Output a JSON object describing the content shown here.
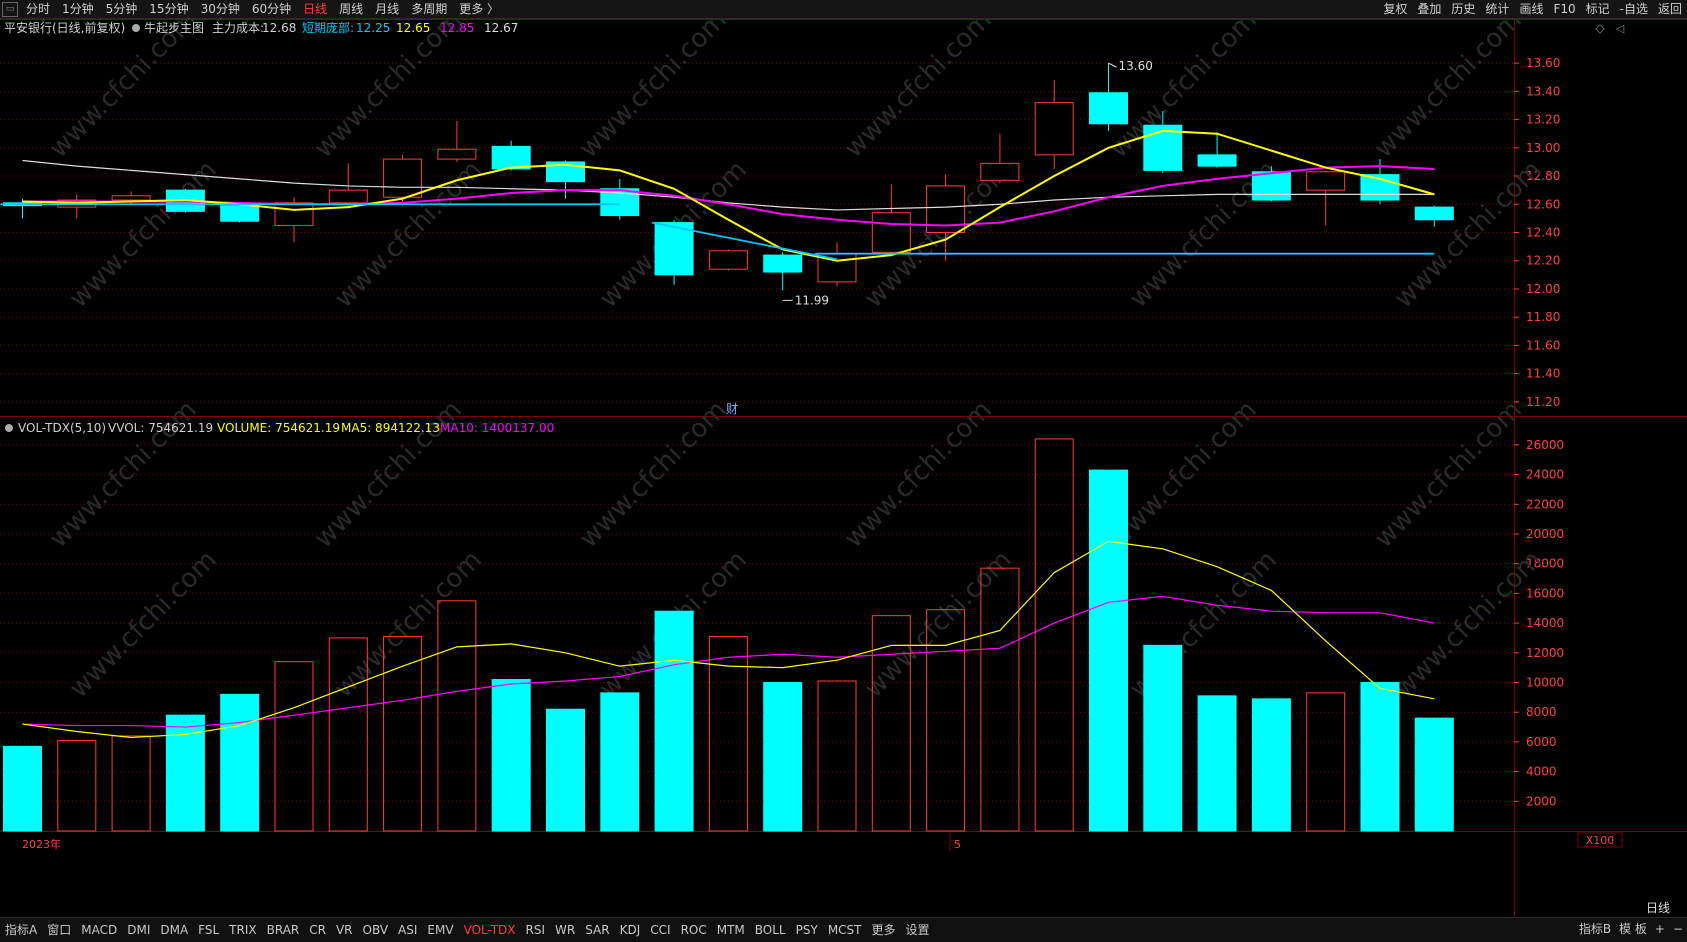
{
  "toolbar": {
    "sys_icon": "window-icon",
    "periods": [
      {
        "label": "分时",
        "active": false
      },
      {
        "label": "1分钟",
        "active": false
      },
      {
        "label": "5分钟",
        "active": false
      },
      {
        "label": "15分钟",
        "active": false
      },
      {
        "label": "30分钟",
        "active": false
      },
      {
        "label": "60分钟",
        "active": false
      },
      {
        "label": "日线",
        "active": true
      },
      {
        "label": "周线",
        "active": false
      },
      {
        "label": "月线",
        "active": false
      },
      {
        "label": "多周期",
        "active": false
      },
      {
        "label": "更多 〉",
        "active": false
      }
    ],
    "right_items": [
      "复权",
      "叠加",
      "历史",
      "统计",
      "画线",
      "F10",
      "标记",
      "-自选",
      "返回"
    ]
  },
  "main_header": {
    "stock": "平安银行(日线,前复权)",
    "indicator": "牛起步主图",
    "cost_label": "主力成本:",
    "cost_value": "12.68",
    "short_label": "短期庞部:",
    "short_v1": "12.25",
    "short_v2": "12.65",
    "short_v3": "12.85",
    "short_v4": "12.67"
  },
  "vol_header": {
    "name": "VOL-TDX(5,10)",
    "vvol_label": "VVOL:",
    "vvol_value": "754621.19",
    "volume_label": "VOLUME:",
    "volume_value": "754621.19",
    "ma5_label": "MA5:",
    "ma5_value": "894122.13",
    "ma10_label": "MA10:",
    "ma10_value": "1400137.00"
  },
  "annotations": {
    "high_label": "13.60",
    "low_label": "11.99",
    "cai_label": "财",
    "year_label": "2023年",
    "month_label": "5",
    "unit_label": "X100",
    "period_label": "日线"
  },
  "colors": {
    "up": "#ff3c3c",
    "down": "#00ffff",
    "ma_yellow": "#ffff00",
    "ma_magenta": "#ff00ff",
    "ma_white": "#dddddd",
    "ma_cyan": "#00c8ff",
    "grid": "#7a0000",
    "axis_text": "#ff4040"
  },
  "chart_data": {
    "type": "candlestick",
    "price_axis": {
      "ticks": [
        "13.60",
        "13.40",
        "13.20",
        "13.00",
        "12.80",
        "12.60",
        "12.40",
        "12.20",
        "12.00",
        "11.80",
        "11.60",
        "11.40",
        "11.20"
      ]
    },
    "volume_axis": {
      "ticks": [
        "26000",
        "24000",
        "22000",
        "20000",
        "18000",
        "16000",
        "14000",
        "12000",
        "10000",
        "8000",
        "6000",
        "4000",
        "2000"
      ]
    },
    "candles": [
      {
        "o": 12.59,
        "c": 12.61,
        "h": 12.64,
        "l": 12.5,
        "up": false,
        "vol": 5700
      },
      {
        "o": 12.58,
        "c": 12.63,
        "h": 12.67,
        "l": 12.5,
        "up": true,
        "vol": 6100
      },
      {
        "o": 12.63,
        "c": 12.66,
        "h": 12.69,
        "l": 12.6,
        "up": true,
        "vol": 6400
      },
      {
        "o": 12.7,
        "c": 12.55,
        "h": 12.71,
        "l": 12.54,
        "up": false,
        "vol": 7800
      },
      {
        "o": 12.59,
        "c": 12.48,
        "h": 12.61,
        "l": 12.47,
        "up": false,
        "vol": 9200
      },
      {
        "o": 12.45,
        "c": 12.61,
        "h": 12.65,
        "l": 12.33,
        "up": true,
        "vol": 11400
      },
      {
        "o": 12.61,
        "c": 12.7,
        "h": 12.89,
        "l": 12.57,
        "up": true,
        "vol": 13000
      },
      {
        "o": 12.65,
        "c": 12.92,
        "h": 12.95,
        "l": 12.59,
        "up": true,
        "vol": 13100
      },
      {
        "o": 12.92,
        "c": 12.99,
        "h": 13.19,
        "l": 12.9,
        "up": true,
        "vol": 15500
      },
      {
        "o": 13.01,
        "c": 12.85,
        "h": 13.05,
        "l": 12.84,
        "up": false,
        "vol": 10200
      },
      {
        "o": 12.9,
        "c": 12.76,
        "h": 12.91,
        "l": 12.64,
        "up": false,
        "vol": 8200
      },
      {
        "o": 12.71,
        "c": 12.52,
        "h": 12.78,
        "l": 12.49,
        "up": false,
        "vol": 9300
      },
      {
        "o": 12.47,
        "c": 12.1,
        "h": 12.49,
        "l": 12.03,
        "up": false,
        "vol": 14800
      },
      {
        "o": 12.14,
        "c": 12.27,
        "h": 12.28,
        "l": 12.13,
        "up": true,
        "vol": 13100
      },
      {
        "o": 12.24,
        "c": 12.12,
        "h": 12.26,
        "l": 11.99,
        "up": false,
        "vol": 10000
      },
      {
        "o": 12.05,
        "c": 12.25,
        "h": 12.33,
        "l": 12.02,
        "up": true,
        "vol": 10100
      },
      {
        "o": 12.26,
        "c": 12.54,
        "h": 12.74,
        "l": 12.23,
        "up": true,
        "vol": 14500
      },
      {
        "o": 12.4,
        "c": 12.73,
        "h": 12.81,
        "l": 12.2,
        "up": true,
        "vol": 14900
      },
      {
        "o": 12.77,
        "c": 12.89,
        "h": 13.1,
        "l": 12.75,
        "up": true,
        "vol": 17700
      },
      {
        "o": 12.95,
        "c": 13.32,
        "h": 13.48,
        "l": 12.85,
        "up": true,
        "vol": 26400
      },
      {
        "o": 13.39,
        "c": 13.17,
        "h": 13.6,
        "l": 13.12,
        "up": false,
        "vol": 24300
      },
      {
        "o": 13.16,
        "c": 12.84,
        "h": 13.26,
        "l": 12.82,
        "up": false,
        "vol": 12500
      },
      {
        "o": 12.95,
        "c": 12.87,
        "h": 13.11,
        "l": 12.86,
        "up": false,
        "vol": 9100
      },
      {
        "o": 12.83,
        "c": 12.63,
        "h": 12.87,
        "l": 12.62,
        "up": false,
        "vol": 8900
      },
      {
        "o": 12.7,
        "c": 12.83,
        "h": 12.84,
        "l": 12.45,
        "up": true,
        "vol": 9300
      },
      {
        "o": 12.81,
        "c": 12.63,
        "h": 12.92,
        "l": 12.6,
        "up": false,
        "vol": 10000
      },
      {
        "o": 12.58,
        "c": 12.49,
        "h": 12.59,
        "l": 12.44,
        "up": false,
        "vol": 7600
      }
    ],
    "ma_yellow": [
      12.62,
      12.61,
      12.62,
      12.63,
      12.6,
      12.56,
      12.58,
      12.64,
      12.77,
      12.86,
      12.88,
      12.84,
      12.71,
      12.49,
      12.28,
      12.2,
      12.24,
      12.35,
      12.58,
      12.8,
      13.0,
      13.12,
      13.1,
      12.98,
      12.86,
      12.78,
      12.67
    ],
    "ma_magenta": [
      12.62,
      12.62,
      12.62,
      12.62,
      12.61,
      12.6,
      12.6,
      12.61,
      12.64,
      12.68,
      12.7,
      12.7,
      12.66,
      12.6,
      12.53,
      12.49,
      12.46,
      12.45,
      12.47,
      12.55,
      12.65,
      12.73,
      12.78,
      12.82,
      12.86,
      12.87,
      12.85
    ],
    "ma_white": [
      12.91,
      12.87,
      12.84,
      12.81,
      12.78,
      12.75,
      12.73,
      12.72,
      12.72,
      12.71,
      12.7,
      12.68,
      12.65,
      12.61,
      12.58,
      12.56,
      12.57,
      12.58,
      12.6,
      12.63,
      12.65,
      12.66,
      12.67,
      12.67,
      12.67,
      12.67,
      12.67
    ],
    "cyan_segments": [
      {
        "from": 0,
        "to": 11,
        "value": 12.6
      },
      {
        "from": 12,
        "to": 15,
        "start": 12.47,
        "end": 12.21
      },
      {
        "from": 15,
        "to": 26,
        "value": 12.25
      }
    ],
    "vol_ma5": [
      7200,
      6700,
      6300,
      6500,
      7100,
      8300,
      9700,
      11100,
      12400,
      12600,
      12000,
      11100,
      11500,
      11100,
      11000,
      11500,
      12500,
      12500,
      13500,
      17400,
      19500,
      19000,
      17800,
      16200,
      12800,
      9600,
      8900
    ],
    "vol_ma10": [
      7200,
      7100,
      7100,
      7000,
      7300,
      7800,
      8300,
      8800,
      9400,
      9900,
      10100,
      10400,
      11200,
      11700,
      11900,
      11700,
      11900,
      12100,
      12300,
      14000,
      15400,
      15800,
      15200,
      14800,
      14700,
      14700,
      14000
    ]
  }
}
